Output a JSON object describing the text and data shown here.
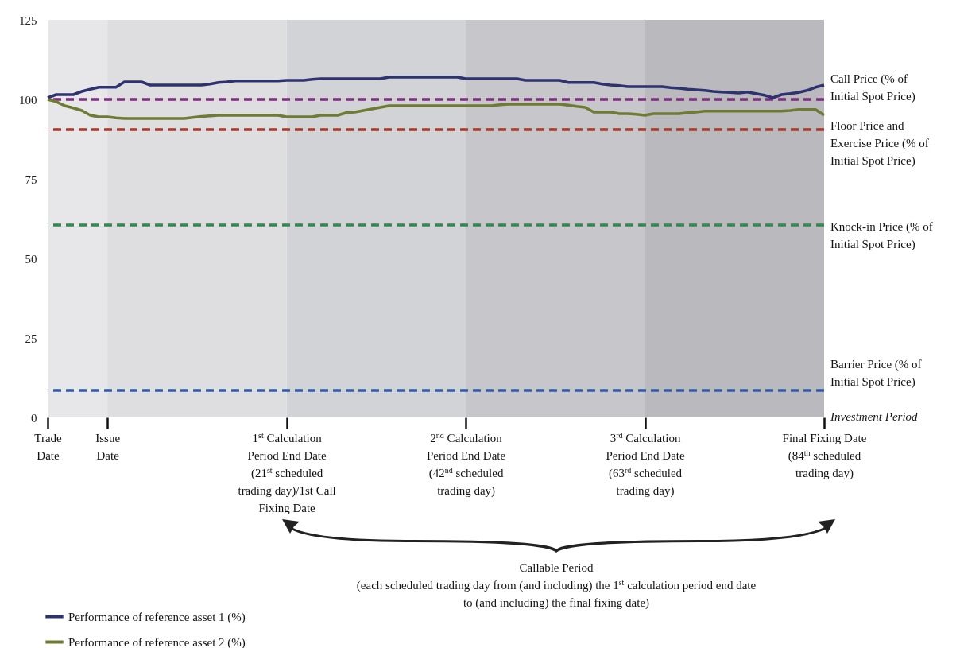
{
  "chart_data": {
    "type": "line",
    "ylim": [
      0,
      125
    ],
    "yticks": [
      0,
      25,
      50,
      75,
      100,
      125
    ],
    "categories": [
      "Trade Date",
      null,
      null,
      null,
      null,
      null,
      null,
      "Issue Date",
      null,
      null,
      null,
      null,
      null,
      null,
      null,
      null,
      null,
      null,
      null,
      null,
      null,
      null,
      null,
      null,
      null,
      null,
      null,
      null,
      "1$^{st}$ Calculation Period End Date (21$^{st}$ scheduled trading day)/1st Call Fixing Date",
      null,
      null,
      null,
      null,
      null,
      null,
      null,
      null,
      null,
      null,
      null,
      null,
      null,
      null,
      null,
      null,
      null,
      null,
      null,
      null,
      "2$^{nd}$ Calculation Period End Date (42$^{nd}$ scheduled trading day)",
      null,
      null,
      null,
      null,
      null,
      null,
      null,
      null,
      null,
      null,
      null,
      null,
      null,
      null,
      null,
      null,
      null,
      null,
      null,
      null,
      "3$^{rd}$ Calculation Period End Date (63$^{rd}$ scheduled trading day)",
      null,
      null,
      null,
      null,
      null,
      null,
      null,
      null,
      null,
      null,
      null,
      null,
      null,
      null,
      null,
      null,
      null,
      null,
      null,
      null,
      "Final Fixing Date (84$^{th}$ scheduled trading day)"
    ],
    "grid": false,
    "legend": "bottom left",
    "series": [
      {
        "name": "Performance of reference asset 1 (%)",
        "color": "#2e3370",
        "values": [
          100.5,
          101.5,
          101.5,
          101.5,
          102.5,
          103.2,
          103.8,
          103.8,
          103.8,
          105.5,
          105.5,
          105.5,
          104.5,
          104.5,
          104.5,
          104.5,
          104.5,
          104.5,
          104.5,
          104.8,
          105.3,
          105.5,
          105.8,
          105.8,
          105.8,
          105.8,
          105.8,
          105.8,
          106,
          106,
          106,
          106.3,
          106.5,
          106.5,
          106.5,
          106.5,
          106.5,
          106.5,
          106.5,
          106.5,
          107,
          107,
          107,
          107,
          107,
          107,
          107,
          107,
          107,
          106.5,
          106.5,
          106.5,
          106.5,
          106.5,
          106.5,
          106.5,
          106,
          106,
          106,
          106,
          106,
          105.3,
          105.3,
          105.3,
          105.3,
          104.8,
          104.5,
          104.3,
          104,
          104,
          104,
          104,
          104,
          103.7,
          103.5,
          103.2,
          103,
          102.8,
          102.5,
          102.3,
          102.2,
          102,
          102.3,
          101.8,
          101.3,
          100.5,
          101.5,
          101.8,
          102.2,
          102.8,
          103.8,
          104.5
        ]
      },
      {
        "name": "Performance of reference asset 2 (%)",
        "color": "#6f7a35",
        "values": [
          100,
          99.3,
          98,
          97.3,
          96.5,
          95,
          94.5,
          94.5,
          94.2,
          94,
          94,
          94,
          94,
          94,
          94,
          94,
          94,
          94.3,
          94.6,
          94.8,
          95,
          95,
          95,
          95,
          95,
          95,
          95,
          95,
          94.5,
          94.5,
          94.5,
          94.5,
          95,
          95,
          95,
          95.8,
          96,
          96.5,
          97,
          97.5,
          98,
          98,
          98,
          98,
          98,
          98,
          98,
          98,
          98,
          98,
          98,
          98,
          98,
          98.3,
          98.5,
          98.5,
          98.5,
          98.5,
          98.5,
          98.5,
          98.5,
          98.2,
          97.8,
          97.5,
          96,
          96,
          96,
          95.5,
          95.5,
          95.3,
          95,
          95.5,
          95.5,
          95.5,
          95.5,
          95.8,
          96,
          96.3,
          96.3,
          96.3,
          96.3,
          96.3,
          96.3,
          96.3,
          96.3,
          96.3,
          96.3,
          96.5,
          96.8,
          96.8,
          96.8,
          95
        ]
      }
    ],
    "ref_lines": [
      {
        "axis": "y",
        "value": 100,
        "label": "Call Price (% of Initial Spot Price)",
        "color": "#7b2d7b",
        "line_style": "dashed"
      },
      {
        "axis": "y",
        "value": 90.5,
        "label": "Floor Price and Exercise Price (% of Initial Spot Price)",
        "color": "#a8352a",
        "line_style": "dashed"
      },
      {
        "axis": "y",
        "value": 60.5,
        "label": "Knock-in Price (% of Initial Spot Price)",
        "color": "#2e8b4f",
        "line_style": "dashed"
      },
      {
        "axis": "y",
        "value": 8.5,
        "label": "Barrier Price (% of Initial Spot Price)",
        "color": "#2f5ea8",
        "line_style": "dashed"
      }
    ],
    "bands": [
      {
        "axis": "x",
        "from": "Trade Date",
        "to": "Issue Date",
        "color": "#e7e7ea"
      },
      {
        "axis": "x",
        "from": "Issue Date",
        "to": "1$^{st}$ Calculation Period End Date (21$^{st}$ scheduled trading day)/1st Call Fixing Date",
        "color": "#dedee1"
      },
      {
        "axis": "x",
        "from": "1$^{st}$ Calculation Period End Date (21$^{st}$ scheduled trading day)/1st Call Fixing Date",
        "to": "2$^{nd}$ Calculation Period End Date (42$^{nd}$ scheduled trading day)",
        "color": "#d2d3d6"
      },
      {
        "axis": "x",
        "from": "2$^{nd}$ Calculation Period End Date (42$^{nd}$ scheduled trading day)",
        "to": "3$^{rd}$ Calculation Period End Date (63$^{rd}$ scheduled trading day)",
        "color": "#c7c7cb"
      },
      {
        "axis": "x",
        "from": "3$^{rd}$ Calculation Period End Date (63$^{rd}$ scheduled trading day)",
        "to": "Final Fixing Date (84$^{th}$ scheduled trading day)",
        "color": "#b9b9be"
      }
    ],
    "annotations": [
      "Investment Period",
      "Callable Period",
      "(each scheduled trading day from (and including) the 1$^{st}$ calculation period end date to (and including) the final fixing date)"
    ]
  }
}
